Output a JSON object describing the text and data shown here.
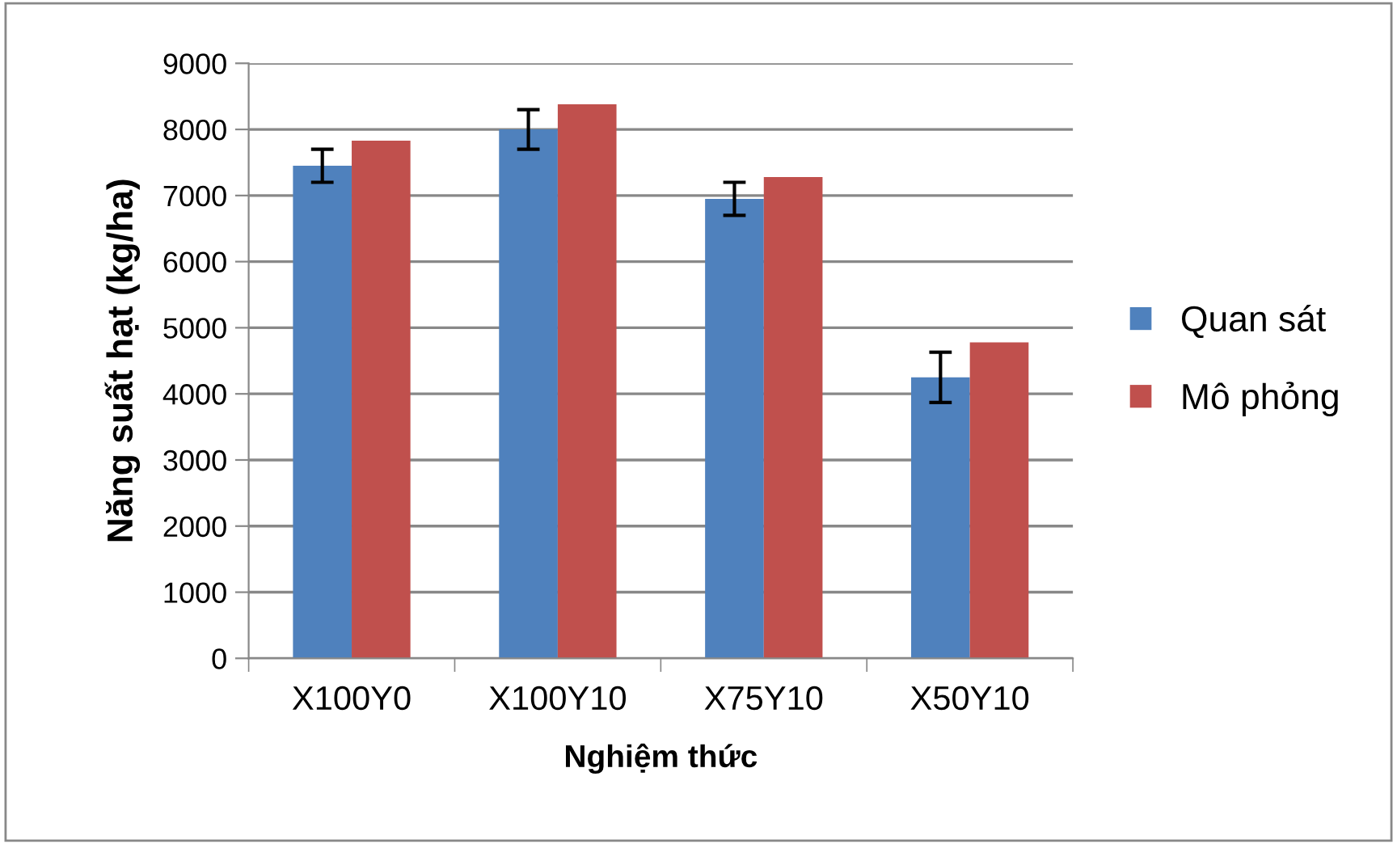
{
  "chart_data": {
    "type": "bar",
    "xlabel": "Nghiệm thức",
    "ylabel": "Năng suất hạt (kg/ha)",
    "categories": [
      "X100Y0",
      "X100Y10",
      "X75Y10",
      "X50Y10"
    ],
    "series": [
      {
        "name": "Quan sát",
        "color": "#4f81bd",
        "values": [
          7450,
          8000,
          6950,
          4250
        ],
        "errors": [
          250,
          300,
          250,
          380
        ]
      },
      {
        "name": "Mô phỏng",
        "color": "#c0504d",
        "values": [
          7830,
          8380,
          7280,
          4780
        ]
      }
    ],
    "ylim": [
      0,
      9000
    ],
    "yticks": [
      0,
      1000,
      2000,
      3000,
      4000,
      5000,
      6000,
      7000,
      8000,
      9000
    ],
    "grid": "y",
    "legend": "right"
  }
}
